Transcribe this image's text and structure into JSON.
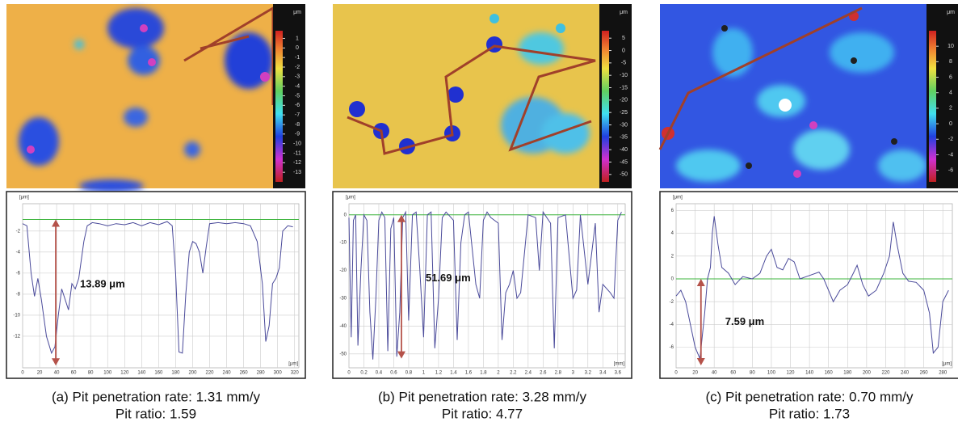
{
  "chart_data": [
    {
      "type": "line",
      "color": "#4a4a9a",
      "colorbar": {
        "unit": "μm",
        "ticks": [
          1,
          0,
          -1,
          -2,
          -3,
          -4,
          -5,
          -6,
          -7,
          -8,
          -9,
          -10,
          -11,
          -12,
          -13
        ],
        "clim": [
          -14,
          1.8
        ]
      },
      "y_label": "[μm]",
      "x_label": "[μm]",
      "x": [
        0,
        5,
        10,
        14,
        18,
        22,
        28,
        34,
        38,
        42,
        46,
        50,
        54,
        58,
        62,
        66,
        72,
        76,
        82,
        90,
        100,
        110,
        120,
        130,
        140,
        150,
        160,
        170,
        176,
        180,
        184,
        188,
        192,
        196,
        200,
        204,
        208,
        212,
        216,
        220,
        230,
        240,
        250,
        260,
        268,
        276,
        282,
        286,
        290,
        294,
        298,
        302,
        306,
        312,
        318
      ],
      "values": [
        -1.3,
        -1.5,
        -6,
        -8.2,
        -6.5,
        -8.5,
        -12,
        -13.6,
        -13,
        -10,
        -7.5,
        -8.5,
        -9.5,
        -7,
        -7.5,
        -6.5,
        -3,
        -1.5,
        -1.2,
        -1.3,
        -1.5,
        -1.3,
        -1.4,
        -1.2,
        -1.5,
        -1.2,
        -1.4,
        -1.1,
        -1.5,
        -6,
        -13.5,
        -13.6,
        -8,
        -4,
        -3,
        -3.2,
        -4,
        -6,
        -3.5,
        -1.3,
        -1.2,
        -1.3,
        -1.2,
        -1.3,
        -1.5,
        -3,
        -7,
        -12.5,
        -11,
        -7,
        -6.5,
        -5.5,
        -2,
        -1.5,
        -1.6
      ],
      "xlim": [
        0,
        325
      ],
      "ylim": [
        -15,
        0.6
      ],
      "xticks": [
        0,
        20,
        40,
        60,
        80,
        100,
        120,
        140,
        160,
        180,
        200,
        220,
        240,
        260,
        280,
        300,
        320
      ],
      "yticks": [
        -2,
        -4,
        -6,
        -8,
        -10,
        -12
      ],
      "reference_line": -0.9,
      "measurement": {
        "value": 13.89,
        "label": "13.89 μm"
      },
      "caption": [
        "(a)  Pit penetration rate: 1.31 mm/y",
        "Pit ratio: 1.59"
      ]
    },
    {
      "type": "line",
      "color": "#4a4a9a",
      "colorbar": {
        "unit": "μm",
        "ticks": [
          5,
          0,
          -5,
          -10,
          -15,
          -20,
          -25,
          -30,
          -35,
          -40,
          -45,
          -50
        ],
        "clim": [
          -53,
          8
        ]
      },
      "y_label": "[μm]",
      "x_label": "[mm]",
      "x": [
        0,
        0.03,
        0.06,
        0.09,
        0.12,
        0.16,
        0.2,
        0.24,
        0.28,
        0.32,
        0.36,
        0.4,
        0.44,
        0.48,
        0.52,
        0.56,
        0.6,
        0.64,
        0.68,
        0.72,
        0.76,
        0.8,
        0.85,
        0.9,
        0.95,
        1.0,
        1.05,
        1.1,
        1.15,
        1.2,
        1.25,
        1.3,
        1.4,
        1.45,
        1.5,
        1.55,
        1.6,
        1.7,
        1.75,
        1.8,
        1.85,
        1.9,
        2.0,
        2.05,
        2.1,
        2.15,
        2.2,
        2.25,
        2.3,
        2.4,
        2.5,
        2.55,
        2.6,
        2.7,
        2.75,
        2.8,
        2.9,
        3.0,
        3.05,
        3.1,
        3.2,
        3.3,
        3.35,
        3.4,
        3.5,
        3.55,
        3.6,
        3.65
      ],
      "values": [
        -1,
        -44,
        -2,
        0,
        -47,
        -20,
        0,
        -2,
        -35,
        -52,
        -30,
        -2,
        1,
        -1,
        -49,
        -5,
        -1,
        -51,
        -35,
        -1,
        1,
        -38,
        0,
        1,
        -20,
        -44,
        0,
        1,
        -48,
        -30,
        -1,
        1,
        -2,
        -45,
        -10,
        0,
        1,
        -25,
        -30,
        -2,
        1,
        -1,
        -3,
        -45,
        -28,
        -25,
        -20,
        -30,
        -28,
        0,
        -1,
        -20,
        1,
        -3,
        -48,
        -1,
        0,
        -30,
        -27,
        0,
        -25,
        -3,
        -35,
        -25,
        -28,
        -30,
        -2,
        1
      ],
      "xlim": [
        0,
        3.7
      ],
      "ylim": [
        -55,
        4
      ],
      "xticks": [
        0,
        0.2,
        0.4,
        0.6,
        0.8,
        1,
        1.2,
        1.4,
        1.6,
        1.8,
        2,
        2.2,
        2.4,
        2.6,
        2.8,
        3,
        3.2,
        3.4,
        3.6
      ],
      "yticks": [
        0,
        -10,
        -20,
        -30,
        -40,
        -50
      ],
      "reference_line": 0,
      "measurement": {
        "value": 51.69,
        "label": "51.69 μm"
      },
      "caption": [
        "(b)  Pit penetration rate: 3.28 mm/y",
        "Pit ratio: 4.77"
      ]
    },
    {
      "type": "line",
      "color": "#4a4a9a",
      "colorbar": {
        "unit": "μm",
        "ticks": [
          10,
          8,
          6,
          4,
          2,
          0,
          -2,
          -4,
          -6
        ],
        "clim": [
          -7.5,
          12
        ]
      },
      "y_label": "[μm]",
      "x_label": "[μm]",
      "x": [
        0,
        5,
        10,
        15,
        20,
        25,
        30,
        33,
        36,
        38,
        40,
        44,
        48,
        55,
        62,
        70,
        80,
        88,
        95,
        100,
        106,
        112,
        118,
        124,
        130,
        140,
        150,
        155,
        160,
        165,
        172,
        180,
        186,
        190,
        196,
        202,
        210,
        218,
        224,
        228,
        232,
        238,
        244,
        252,
        260,
        266,
        270,
        275,
        280,
        286
      ],
      "values": [
        -1.5,
        -1,
        -2,
        -4,
        -6,
        -7,
        -3,
        0,
        1,
        4,
        5.5,
        3,
        1,
        0.5,
        -0.5,
        0.2,
        0,
        0.5,
        2,
        2.6,
        1,
        0.8,
        1.8,
        1.5,
        0,
        0.3,
        0.6,
        0,
        -1,
        -2,
        -1,
        -0.5,
        0.5,
        1.2,
        -0.5,
        -1.5,
        -1,
        0.5,
        2,
        5,
        3,
        0.5,
        -0.2,
        -0.3,
        -1,
        -3,
        -6.5,
        -6,
        -2,
        -1
      ],
      "xlim": [
        0,
        290
      ],
      "ylim": [
        -7.8,
        6.6
      ],
      "xticks": [
        0,
        20,
        40,
        60,
        80,
        100,
        120,
        140,
        160,
        180,
        200,
        220,
        240,
        260,
        280
      ],
      "yticks": [
        6,
        4,
        2,
        0,
        -2,
        -4,
        -6
      ],
      "reference_line": 0,
      "measurement": {
        "value": 7.59,
        "label": "7.59 μm"
      },
      "caption": [
        "(c)  Pit penetration rate: 0.70 mm/y",
        "Pit ratio: 1.73"
      ]
    }
  ]
}
